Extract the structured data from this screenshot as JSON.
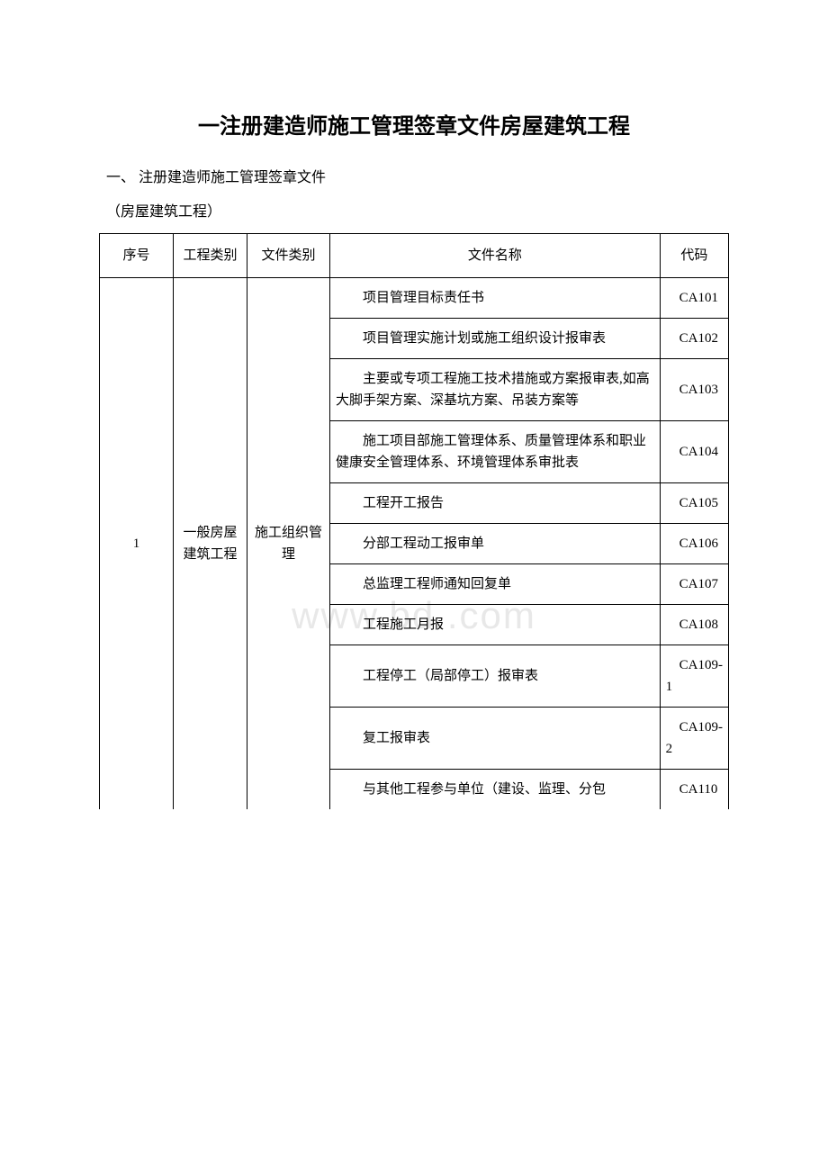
{
  "title": "一注册建造师施工管理签章文件房屋建筑工程",
  "subtitle1": "一、 注册建造师施工管理签章文件",
  "subtitle2": "（房屋建筑工程）",
  "watermark": "www.bd    .com",
  "table": {
    "headers": {
      "seq": "序号",
      "eng_cat": "工程类别",
      "doc_cat": "文件类别",
      "doc_name": "文件名称",
      "code": "代码"
    },
    "seq_value": "1",
    "eng_cat_value": "一般房屋建筑工程",
    "doc_cat_value": "施工组织管理",
    "rows": [
      {
        "name": "项目管理目标责任书",
        "code": "CA101"
      },
      {
        "name": "项目管理实施计划或施工组织设计报审表",
        "code": "CA102"
      },
      {
        "name": "主要或专项工程施工技术措施或方案报审表,如高大脚手架方案、深基坑方案、吊装方案等",
        "code": "CA103"
      },
      {
        "name": "施工项目部施工管理体系、质量管理体系和职业健康安全管理体系、环境管理体系审批表",
        "code": "CA104"
      },
      {
        "name": "工程开工报告",
        "code": "CA105"
      },
      {
        "name": "分部工程动工报审单",
        "code": "CA106"
      },
      {
        "name": "总监理工程师通知回复单",
        "code": "CA107"
      },
      {
        "name": "工程施工月报",
        "code": "CA108"
      },
      {
        "name": "工程停工（局部停工）报审表",
        "code": "CA109-1"
      },
      {
        "name": "复工报审表",
        "code": "CA109-2"
      },
      {
        "name": "与其他工程参与单位（建设、监理、分包",
        "code": "CA110"
      }
    ]
  }
}
